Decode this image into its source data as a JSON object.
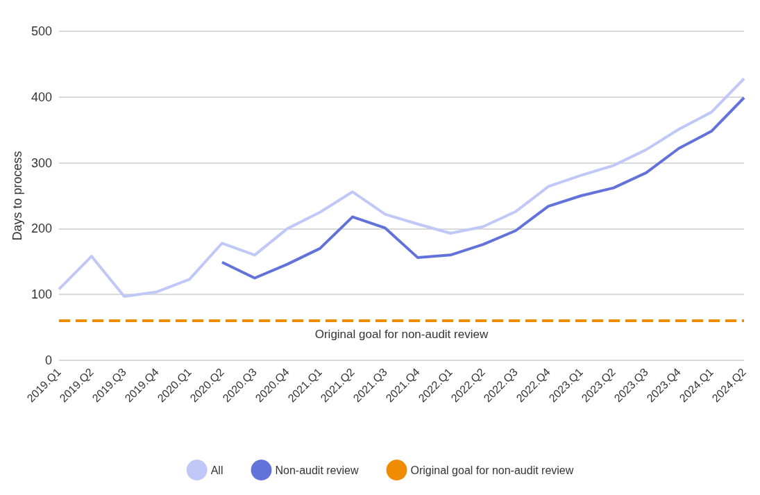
{
  "chart_data": {
    "type": "line",
    "ylabel": "Days to process",
    "categories": [
      "2019.Q1",
      "2019.Q2",
      "2019.Q3",
      "2019.Q4",
      "2020.Q1",
      "2020.Q2",
      "2020.Q3",
      "2020.Q4",
      "2021.Q1",
      "2021.Q2",
      "2021.Q3",
      "2021.Q4",
      "2022.Q1",
      "2022.Q2",
      "2022.Q3",
      "2022.Q4",
      "2023.Q1",
      "2023.Q2",
      "2023.Q3",
      "2023.Q4",
      "2024.Q1",
      "2024.Q2"
    ],
    "series": [
      {
        "name": "All",
        "color": "#c0c8f8",
        "values": [
          108,
          158,
          97,
          104,
          123,
          178,
          160,
          200,
          225,
          256,
          222,
          207,
          193,
          203,
          226,
          264,
          281,
          296,
          320,
          351,
          377,
          428
        ]
      },
      {
        "name": "Non-audit review",
        "color": "#6272db",
        "values": [
          null,
          null,
          null,
          null,
          null,
          149,
          125,
          146,
          170,
          218,
          201,
          156,
          160,
          176,
          197,
          234,
          250,
          262,
          285,
          322,
          348,
          399
        ]
      }
    ],
    "ref_lines": [
      {
        "axis": "y",
        "value": 60,
        "label": "Original goal for non-audit review",
        "color": "#f08c00",
        "line_style": "dashed"
      }
    ],
    "ylim": [
      0,
      500
    ],
    "yticks": [
      0,
      100,
      200,
      300,
      400,
      500
    ],
    "grid": "y",
    "legend": "bottom",
    "marker": "none",
    "line_style": "solid"
  }
}
